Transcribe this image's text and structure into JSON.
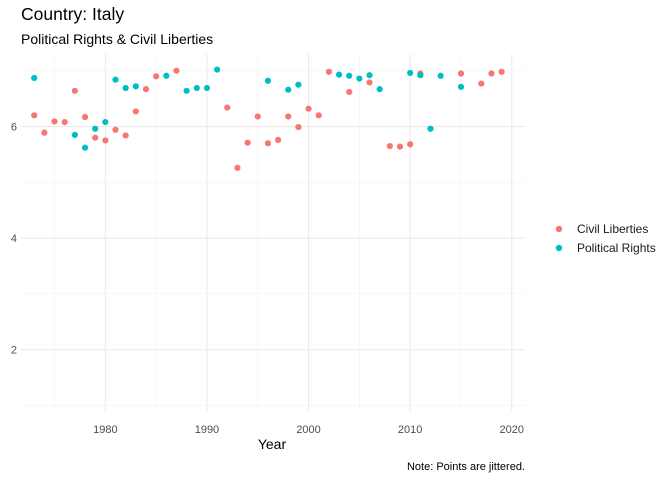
{
  "chart_data": {
    "type": "scatter",
    "title": "Country: Italy",
    "subtitle": "Political Rights & Civil Liberties",
    "xlabel": "Year",
    "ylabel": "",
    "caption": "Note: Points are jittered.",
    "xlim": [
      1971.7,
      2021.3
    ],
    "ylim": [
      0.9,
      7.3
    ],
    "xticks": [
      1980,
      1990,
      2000,
      2010,
      2020
    ],
    "yticks": [
      2,
      4,
      6
    ],
    "xtick_labels": [
      "1980",
      "1990",
      "2000",
      "2010",
      "2020"
    ],
    "ytick_labels": [
      "2",
      "4",
      "6"
    ],
    "grid": true,
    "legend_position": "right",
    "series": [
      {
        "name": "Civil Liberties",
        "color": "#F8766D",
        "points": [
          {
            "x": 1973,
            "y": 6.2
          },
          {
            "x": 1974,
            "y": 5.89
          },
          {
            "x": 1975,
            "y": 6.09
          },
          {
            "x": 1976,
            "y": 6.08
          },
          {
            "x": 1977,
            "y": 6.64
          },
          {
            "x": 1978,
            "y": 6.17
          },
          {
            "x": 1979,
            "y": 5.8
          },
          {
            "x": 1980,
            "y": 5.75
          },
          {
            "x": 1981,
            "y": 5.94
          },
          {
            "x": 1982,
            "y": 5.84
          },
          {
            "x": 1983,
            "y": 6.27
          },
          {
            "x": 1984,
            "y": 6.67
          },
          {
            "x": 1985,
            "y": 6.9
          },
          {
            "x": 1987,
            "y": 7.0
          },
          {
            "x": 1992,
            "y": 6.34
          },
          {
            "x": 1993,
            "y": 5.26
          },
          {
            "x": 1994,
            "y": 5.71
          },
          {
            "x": 1995,
            "y": 6.18
          },
          {
            "x": 1996,
            "y": 5.7
          },
          {
            "x": 1997,
            "y": 5.76
          },
          {
            "x": 1998,
            "y": 6.18
          },
          {
            "x": 1999,
            "y": 5.99
          },
          {
            "x": 2000,
            "y": 6.32
          },
          {
            "x": 2001,
            "y": 6.2
          },
          {
            "x": 2002,
            "y": 6.98
          },
          {
            "x": 2004,
            "y": 6.62
          },
          {
            "x": 2006,
            "y": 6.79
          },
          {
            "x": 2008,
            "y": 5.65
          },
          {
            "x": 2009,
            "y": 5.64
          },
          {
            "x": 2010,
            "y": 5.68
          },
          {
            "x": 2011,
            "y": 6.95
          },
          {
            "x": 2015,
            "y": 6.95
          },
          {
            "x": 2017,
            "y": 6.77
          },
          {
            "x": 2018,
            "y": 6.95
          },
          {
            "x": 2019,
            "y": 6.98
          }
        ]
      },
      {
        "name": "Political Rights",
        "color": "#00BFC4",
        "points": [
          {
            "x": 1973,
            "y": 6.87
          },
          {
            "x": 1977,
            "y": 5.85
          },
          {
            "x": 1978,
            "y": 5.62
          },
          {
            "x": 1979,
            "y": 5.96
          },
          {
            "x": 1980,
            "y": 6.08
          },
          {
            "x": 1981,
            "y": 6.84
          },
          {
            "x": 1982,
            "y": 6.69
          },
          {
            "x": 1983,
            "y": 6.72
          },
          {
            "x": 1986,
            "y": 6.91
          },
          {
            "x": 1988,
            "y": 6.64
          },
          {
            "x": 1989,
            "y": 6.69
          },
          {
            "x": 1990,
            "y": 6.69
          },
          {
            "x": 1991,
            "y": 7.02
          },
          {
            "x": 1996,
            "y": 6.82
          },
          {
            "x": 1998,
            "y": 6.66
          },
          {
            "x": 1999,
            "y": 6.75
          },
          {
            "x": 2003,
            "y": 6.93
          },
          {
            "x": 2004,
            "y": 6.91
          },
          {
            "x": 2005,
            "y": 6.86
          },
          {
            "x": 2006,
            "y": 6.92
          },
          {
            "x": 2007,
            "y": 6.67
          },
          {
            "x": 2010,
            "y": 6.96
          },
          {
            "x": 2011,
            "y": 6.92
          },
          {
            "x": 2012,
            "y": 5.96
          },
          {
            "x": 2013,
            "y": 6.91
          },
          {
            "x": 2015,
            "y": 6.71
          }
        ]
      }
    ]
  }
}
